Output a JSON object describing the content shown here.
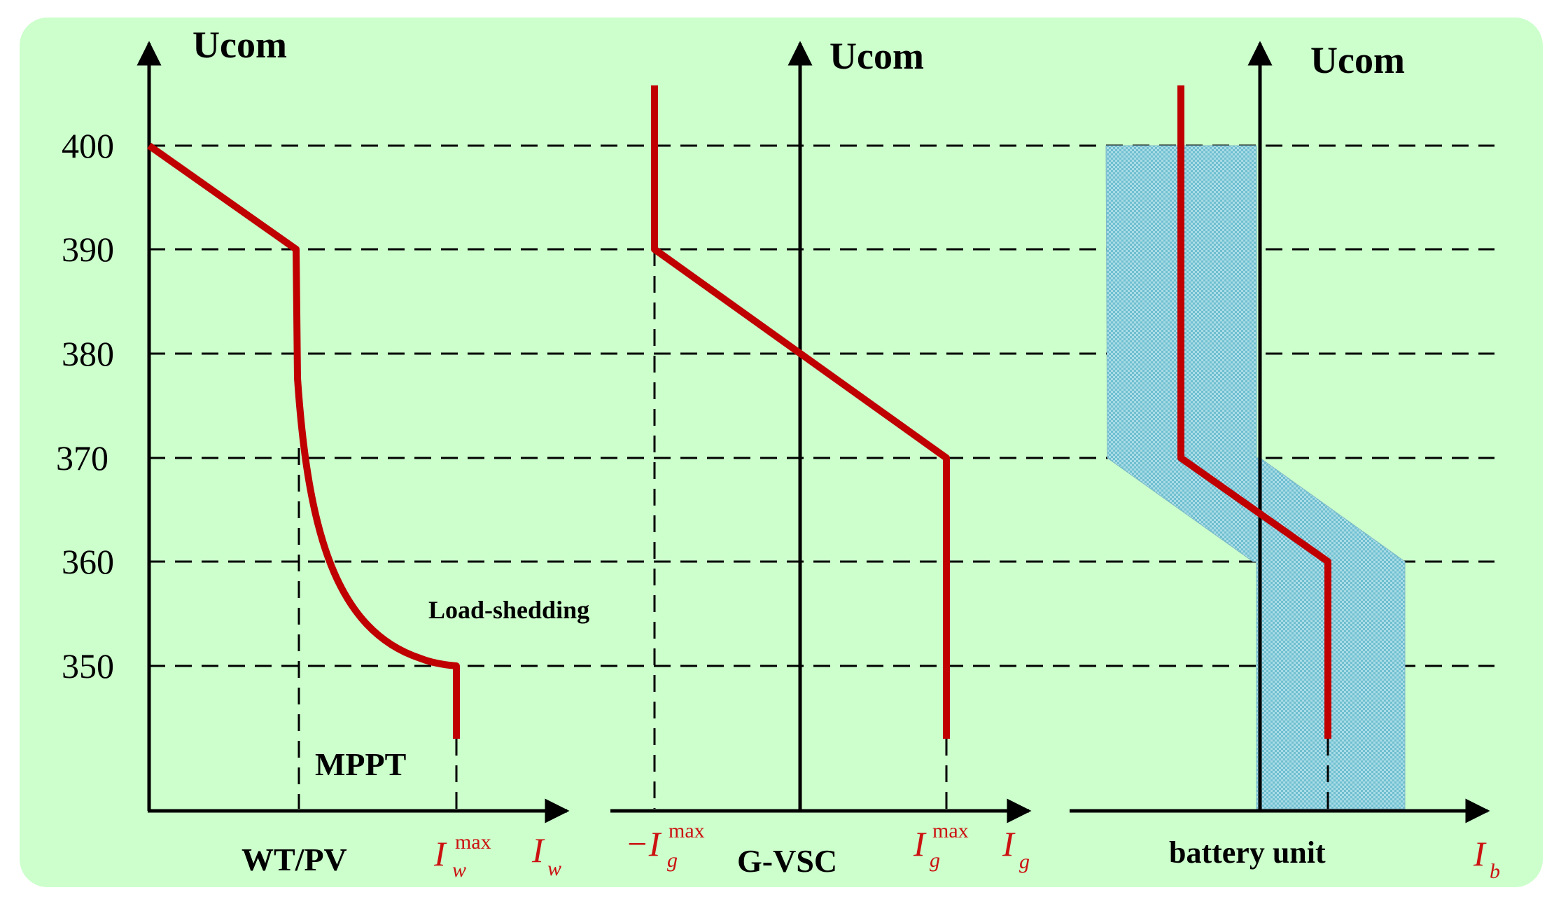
{
  "colors": {
    "background": "#ccffcc",
    "curve": "#c00000",
    "band": "#7fc8d8",
    "axis": "#000000",
    "label_red": "#cc1111"
  },
  "y_ticks": [
    "400",
    "390",
    "380",
    "370",
    "360",
    "350"
  ],
  "panels": {
    "wt": {
      "ylabel": "Ucom",
      "name": "WT/PV",
      "mppt": "MPPT",
      "load_shedding": "Load-shedding",
      "imax_base": "I",
      "imax_sub": "w",
      "imax_sup": "max",
      "axis_base": "I",
      "axis_sub": "w"
    },
    "gvsc": {
      "ylabel": "Ucom",
      "name": "G-VSC",
      "neg_imax_base": "−I",
      "neg_imax_sub": "g",
      "neg_imax_sup": "max",
      "imax_base": "I",
      "imax_sub": "g",
      "imax_sup": "max",
      "axis_base": "I",
      "axis_sub": "g"
    },
    "battery": {
      "ylabel": "Ucom",
      "name": "battery unit",
      "axis_base": "I",
      "axis_sub": "b"
    }
  }
}
